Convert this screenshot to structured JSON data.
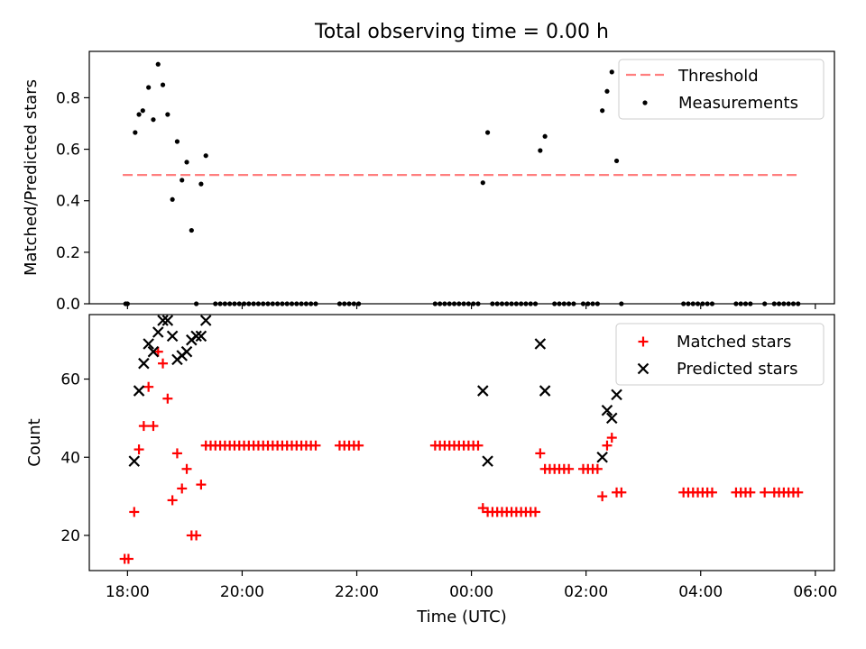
{
  "title": "Total observing time = 0.00 h",
  "chart_data": [
    {
      "type": "scatter",
      "ylabel": "Matched/Predicted stars",
      "xlabel": "",
      "xlim": [
        "17:20",
        "06:20"
      ],
      "ylim": [
        0,
        0.98
      ],
      "y_ticks": [
        "0.0",
        "0.2",
        "0.4",
        "0.6",
        "0.8"
      ],
      "y_tick_values": [
        0,
        0.2,
        0.4,
        0.6,
        0.8
      ],
      "x_tick_values": [
        "18:00",
        "20:00",
        "22:00",
        "00:00",
        "02:00",
        "04:00",
        "06:00"
      ],
      "legend": "top-right",
      "threshold": {
        "name": "Threshold",
        "value": 0.5,
        "x_range": [
          "17:55",
          "05:43"
        ],
        "color": "#ff7f7f"
      },
      "series": [
        {
          "name": "Measurements",
          "color": "#000000",
          "points": [
            [
              "17:58",
              0
            ],
            [
              "18:00",
              0
            ],
            [
              "18:08",
              0.665
            ],
            [
              "18:12",
              0.735
            ],
            [
              "18:16",
              0.75
            ],
            [
              "18:22",
              0.84
            ],
            [
              "18:27",
              0.715
            ],
            [
              "18:32",
              0.93
            ],
            [
              "18:37",
              0.85
            ],
            [
              "18:42",
              0.735
            ],
            [
              "18:47",
              0.405
            ],
            [
              "18:52",
              0.63
            ],
            [
              "18:57",
              0.48
            ],
            [
              "19:02",
              0.55
            ],
            [
              "19:07",
              0.285
            ],
            [
              "19:12",
              0
            ],
            [
              "19:17",
              0.465
            ],
            [
              "19:22",
              0.575
            ],
            [
              "19:32",
              0
            ],
            [
              "19:37",
              0
            ],
            [
              "19:42",
              0
            ],
            [
              "19:47",
              0
            ],
            [
              "19:52",
              0
            ],
            [
              "19:57",
              0
            ],
            [
              "20:02",
              0
            ],
            [
              "20:07",
              0
            ],
            [
              "20:12",
              0
            ],
            [
              "20:17",
              0
            ],
            [
              "20:22",
              0
            ],
            [
              "20:27",
              0
            ],
            [
              "20:32",
              0
            ],
            [
              "20:37",
              0
            ],
            [
              "20:42",
              0
            ],
            [
              "20:47",
              0
            ],
            [
              "20:52",
              0
            ],
            [
              "20:57",
              0
            ],
            [
              "21:02",
              0
            ],
            [
              "21:07",
              0
            ],
            [
              "21:12",
              0
            ],
            [
              "21:17",
              0
            ],
            [
              "21:42",
              0
            ],
            [
              "21:47",
              0
            ],
            [
              "21:52",
              0
            ],
            [
              "21:57",
              0
            ],
            [
              "22:02",
              0
            ],
            [
              "23:22",
              0
            ],
            [
              "23:27",
              0
            ],
            [
              "23:32",
              0
            ],
            [
              "23:37",
              0
            ],
            [
              "23:42",
              0
            ],
            [
              "23:47",
              0
            ],
            [
              "23:52",
              0
            ],
            [
              "23:57",
              0
            ],
            [
              "00:02",
              0
            ],
            [
              "00:07",
              0
            ],
            [
              "00:12",
              0.47
            ],
            [
              "00:17",
              0.665
            ],
            [
              "00:22",
              0
            ],
            [
              "00:27",
              0
            ],
            [
              "00:32",
              0
            ],
            [
              "00:37",
              0
            ],
            [
              "00:42",
              0
            ],
            [
              "00:47",
              0
            ],
            [
              "00:52",
              0
            ],
            [
              "00:57",
              0
            ],
            [
              "01:02",
              0
            ],
            [
              "01:07",
              0
            ],
            [
              "01:12",
              0.595
            ],
            [
              "01:17",
              0.65
            ],
            [
              "01:27",
              0
            ],
            [
              "01:32",
              0
            ],
            [
              "01:37",
              0
            ],
            [
              "01:42",
              0
            ],
            [
              "01:47",
              0
            ],
            [
              "01:57",
              0
            ],
            [
              "02:02",
              0
            ],
            [
              "02:07",
              0
            ],
            [
              "02:12",
              0
            ],
            [
              "02:17",
              0.75
            ],
            [
              "02:22",
              0.825
            ],
            [
              "02:27",
              0.9
            ],
            [
              "02:32",
              0.555
            ],
            [
              "02:37",
              0
            ],
            [
              "03:42",
              0
            ],
            [
              "03:47",
              0
            ],
            [
              "03:52",
              0
            ],
            [
              "03:57",
              0
            ],
            [
              "04:02",
              0
            ],
            [
              "04:07",
              0
            ],
            [
              "04:12",
              0
            ],
            [
              "04:37",
              0
            ],
            [
              "04:42",
              0
            ],
            [
              "04:47",
              0
            ],
            [
              "04:52",
              0
            ],
            [
              "05:07",
              0
            ],
            [
              "05:17",
              0
            ],
            [
              "05:22",
              0
            ],
            [
              "05:27",
              0
            ],
            [
              "05:32",
              0
            ],
            [
              "05:37",
              0
            ],
            [
              "05:42",
              0
            ]
          ]
        }
      ]
    },
    {
      "type": "scatter",
      "ylabel": "Count",
      "xlabel": "Time (UTC)",
      "xlim": [
        "17:20",
        "06:20"
      ],
      "ylim": [
        11,
        76.5
      ],
      "y_ticks": [
        "20",
        "40",
        "60"
      ],
      "y_tick_values": [
        20,
        40,
        60
      ],
      "x_ticks": [
        "18:00",
        "20:00",
        "22:00",
        "00:00",
        "02:00",
        "04:00",
        "06:00"
      ],
      "x_tick_values": [
        "18:00",
        "20:00",
        "22:00",
        "00:00",
        "02:00",
        "04:00",
        "06:00"
      ],
      "legend": "top-right",
      "series": [
        {
          "name": "Matched stars",
          "color": "#ff0000",
          "marker": "plus",
          "points": [
            [
              "17:57",
              14
            ],
            [
              "18:01",
              14
            ],
            [
              "18:07",
              26
            ],
            [
              "18:12",
              42
            ],
            [
              "18:17",
              48
            ],
            [
              "18:22",
              58
            ],
            [
              "18:27",
              48
            ],
            [
              "18:32",
              67
            ],
            [
              "18:37",
              64
            ],
            [
              "18:42",
              55
            ],
            [
              "18:47",
              29
            ],
            [
              "18:52",
              41
            ],
            [
              "18:57",
              32
            ],
            [
              "19:02",
              37
            ],
            [
              "19:07",
              20
            ],
            [
              "19:12",
              20
            ],
            [
              "19:17",
              33
            ],
            [
              "19:22",
              43
            ],
            [
              "19:27",
              43
            ],
            [
              "19:32",
              43
            ],
            [
              "19:37",
              43
            ],
            [
              "19:42",
              43
            ],
            [
              "19:47",
              43
            ],
            [
              "19:52",
              43
            ],
            [
              "19:57",
              43
            ],
            [
              "20:02",
              43
            ],
            [
              "20:07",
              43
            ],
            [
              "20:12",
              43
            ],
            [
              "20:17",
              43
            ],
            [
              "20:22",
              43
            ],
            [
              "20:27",
              43
            ],
            [
              "20:32",
              43
            ],
            [
              "20:37",
              43
            ],
            [
              "20:42",
              43
            ],
            [
              "20:47",
              43
            ],
            [
              "20:52",
              43
            ],
            [
              "20:57",
              43
            ],
            [
              "21:02",
              43
            ],
            [
              "21:07",
              43
            ],
            [
              "21:12",
              43
            ],
            [
              "21:17",
              43
            ],
            [
              "21:42",
              43
            ],
            [
              "21:47",
              43
            ],
            [
              "21:52",
              43
            ],
            [
              "21:57",
              43
            ],
            [
              "22:02",
              43
            ],
            [
              "23:22",
              43
            ],
            [
              "23:27",
              43
            ],
            [
              "23:32",
              43
            ],
            [
              "23:37",
              43
            ],
            [
              "23:42",
              43
            ],
            [
              "23:47",
              43
            ],
            [
              "23:52",
              43
            ],
            [
              "23:57",
              43
            ],
            [
              "00:02",
              43
            ],
            [
              "00:07",
              43
            ],
            [
              "00:12",
              27
            ],
            [
              "00:17",
              26
            ],
            [
              "00:22",
              26
            ],
            [
              "00:27",
              26
            ],
            [
              "00:32",
              26
            ],
            [
              "00:37",
              26
            ],
            [
              "00:42",
              26
            ],
            [
              "00:47",
              26
            ],
            [
              "00:52",
              26
            ],
            [
              "00:57",
              26
            ],
            [
              "01:02",
              26
            ],
            [
              "01:07",
              26
            ],
            [
              "01:12",
              41
            ],
            [
              "01:17",
              37
            ],
            [
              "01:22",
              37
            ],
            [
              "01:27",
              37
            ],
            [
              "01:32",
              37
            ],
            [
              "01:37",
              37
            ],
            [
              "01:42",
              37
            ],
            [
              "01:57",
              37
            ],
            [
              "02:02",
              37
            ],
            [
              "02:07",
              37
            ],
            [
              "02:12",
              37
            ],
            [
              "02:17",
              30
            ],
            [
              "02:22",
              43
            ],
            [
              "02:27",
              45
            ],
            [
              "02:32",
              31
            ],
            [
              "02:37",
              31
            ],
            [
              "03:42",
              31
            ],
            [
              "03:47",
              31
            ],
            [
              "03:52",
              31
            ],
            [
              "03:57",
              31
            ],
            [
              "04:02",
              31
            ],
            [
              "04:07",
              31
            ],
            [
              "04:12",
              31
            ],
            [
              "04:37",
              31
            ],
            [
              "04:42",
              31
            ],
            [
              "04:47",
              31
            ],
            [
              "04:52",
              31
            ],
            [
              "05:07",
              31
            ],
            [
              "05:17",
              31
            ],
            [
              "05:22",
              31
            ],
            [
              "05:27",
              31
            ],
            [
              "05:32",
              31
            ],
            [
              "05:37",
              31
            ],
            [
              "05:42",
              31
            ]
          ]
        },
        {
          "name": "Predicted stars",
          "color": "#000000",
          "marker": "x",
          "points": [
            [
              "18:07",
              39
            ],
            [
              "18:12",
              57
            ],
            [
              "18:17",
              64
            ],
            [
              "18:22",
              69
            ],
            [
              "18:27",
              67
            ],
            [
              "18:32",
              72
            ],
            [
              "18:37",
              75
            ],
            [
              "18:42",
              75
            ],
            [
              "18:47",
              71
            ],
            [
              "18:52",
              65
            ],
            [
              "18:57",
              66
            ],
            [
              "19:02",
              67
            ],
            [
              "19:07",
              70
            ],
            [
              "19:12",
              71
            ],
            [
              "19:17",
              71
            ],
            [
              "19:22",
              75
            ],
            [
              "00:12",
              57
            ],
            [
              "00:17",
              39
            ],
            [
              "01:12",
              69
            ],
            [
              "01:17",
              57
            ],
            [
              "02:17",
              40
            ],
            [
              "02:22",
              52
            ],
            [
              "02:27",
              50
            ],
            [
              "02:32",
              56
            ]
          ]
        }
      ]
    }
  ]
}
